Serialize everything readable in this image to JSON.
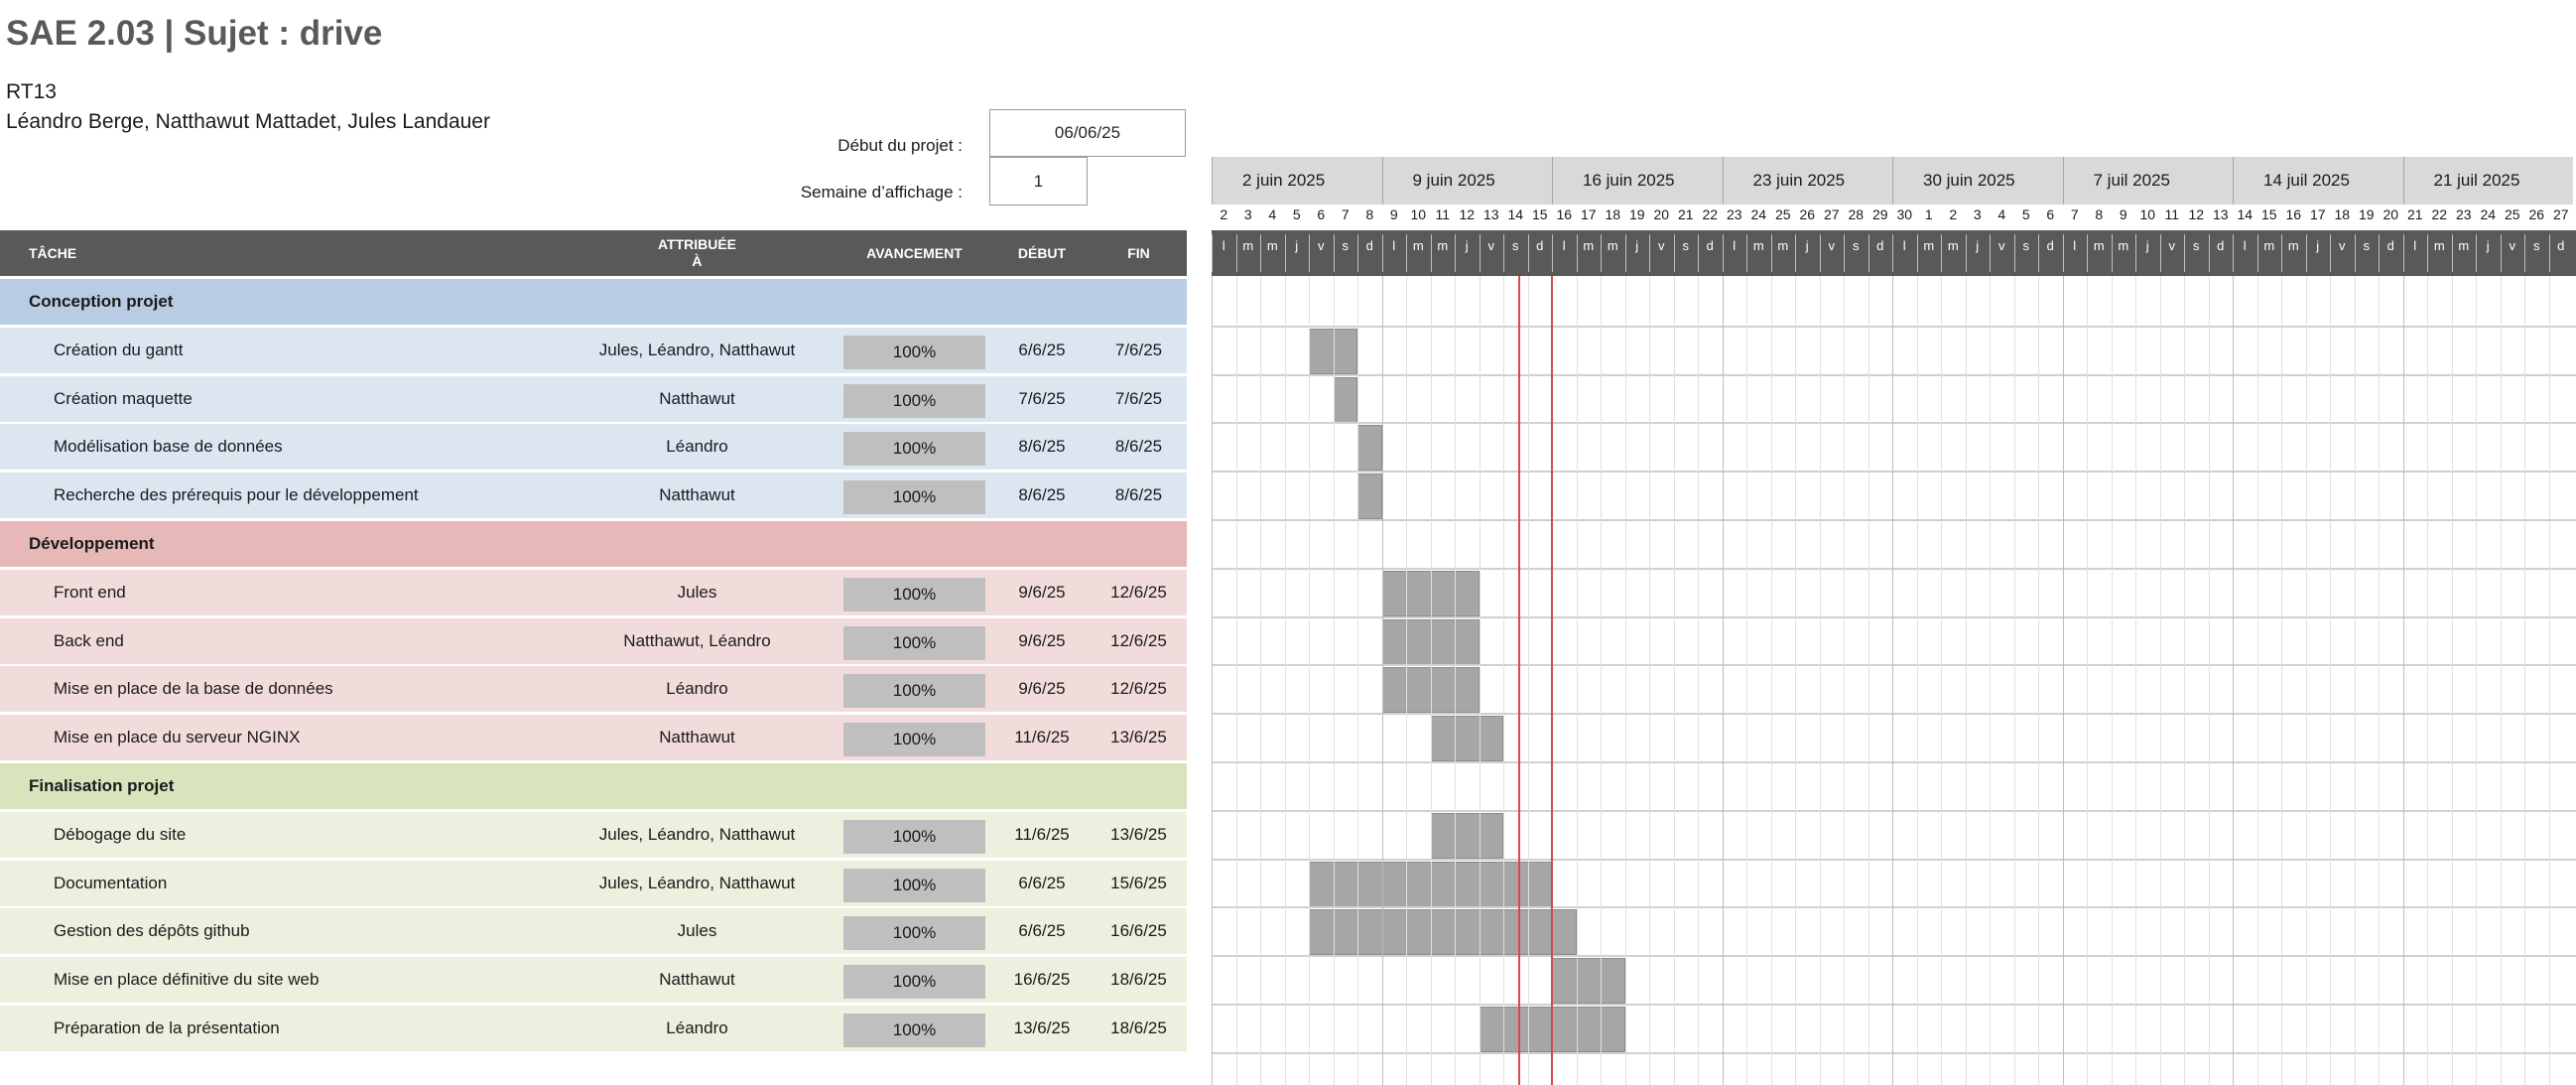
{
  "header": {
    "title": "SAE 2.03 | Sujet : drive",
    "group": "RT13",
    "authors": "Léandro Berge, Natthawut Mattadet, Jules Landauer",
    "project_start_label": "Début du projet :",
    "project_start_value": "06/06/25",
    "display_week_label": "Semaine d’affichage :",
    "display_week_value": "1"
  },
  "columns": {
    "task": "TÂCHE",
    "assigned": "ATTRIBUÉE\nÀ",
    "progress": "AVANCEMENT",
    "start": "DÉBUT",
    "end": "FIN"
  },
  "colors": {
    "header_bg": "#595959",
    "section1": "#b8cce4",
    "section1_row": "#dce6f1",
    "section2": "#e6b8b7",
    "section2_row": "#f2dcdb",
    "section3": "#d8e4bc",
    "section3_row": "#ebf1de",
    "bar": "#a6a6a6",
    "today_line": "#d84a4a"
  },
  "timeline": {
    "weeks": [
      "2 juin 2025",
      "9 juin 2025",
      "16 juin 2025",
      "23 juin 2025",
      "30 juin 2025",
      "7 juil 2025",
      "14 juil 2025",
      "21 juil 2025"
    ],
    "day_numbers": [
      "2",
      "3",
      "4",
      "5",
      "6",
      "7",
      "8",
      "9",
      "10",
      "11",
      "12",
      "13",
      "14",
      "15",
      "16",
      "17",
      "18",
      "19",
      "20",
      "21",
      "22",
      "23",
      "24",
      "25",
      "26",
      "27",
      "28",
      "29",
      "30",
      "1",
      "2",
      "3",
      "4",
      "5",
      "6",
      "7",
      "8",
      "9",
      "10",
      "11",
      "12",
      "13",
      "14",
      "15",
      "16",
      "17",
      "18",
      "19",
      "20",
      "21",
      "22",
      "23",
      "24",
      "25",
      "26",
      "27"
    ],
    "day_letters": [
      "l",
      "m",
      "m",
      "j",
      "v",
      "s",
      "d"
    ]
  },
  "rows": [
    {
      "type": "section",
      "section": 1,
      "task": "Conception projet"
    },
    {
      "type": "task",
      "section": 1,
      "task": "Création du gantt",
      "who": "Jules, Léandro, Natthawut",
      "progress": "100%",
      "start": "6/6/25",
      "end": "7/6/25",
      "s": 4,
      "e": 5
    },
    {
      "type": "task",
      "section": 1,
      "task": "Création maquette",
      "who": "Natthawut",
      "progress": "100%",
      "start": "7/6/25",
      "end": "7/6/25",
      "s": 5,
      "e": 5
    },
    {
      "type": "task",
      "section": 1,
      "task": "Modélisation base de données",
      "who": "Léandro",
      "progress": "100%",
      "start": "8/6/25",
      "end": "8/6/25",
      "s": 6,
      "e": 6
    },
    {
      "type": "task",
      "section": 1,
      "task": "Recherche des prérequis pour le développement",
      "who": "Natthawut",
      "progress": "100%",
      "start": "8/6/25",
      "end": "8/6/25",
      "s": 6,
      "e": 6
    },
    {
      "type": "section",
      "section": 2,
      "task": "Développement"
    },
    {
      "type": "task",
      "section": 2,
      "task": "Front end",
      "who": "Jules",
      "progress": "100%",
      "start": "9/6/25",
      "end": "12/6/25",
      "s": 7,
      "e": 10
    },
    {
      "type": "task",
      "section": 2,
      "task": "Back end",
      "who": "Natthawut, Léandro",
      "progress": "100%",
      "start": "9/6/25",
      "end": "12/6/25",
      "s": 7,
      "e": 10
    },
    {
      "type": "task",
      "section": 2,
      "task": "Mise en place de la base de données",
      "who": "Léandro",
      "progress": "100%",
      "start": "9/6/25",
      "end": "12/6/25",
      "s": 7,
      "e": 10
    },
    {
      "type": "task",
      "section": 2,
      "task": "Mise en place du serveur NGINX",
      "who": "Natthawut",
      "progress": "100%",
      "start": "11/6/25",
      "end": "13/6/25",
      "s": 9,
      "e": 11
    },
    {
      "type": "section",
      "section": 3,
      "task": "Finalisation projet"
    },
    {
      "type": "task",
      "section": 3,
      "task": "Débogage du site",
      "who": "Jules, Léandro, Natthawut",
      "progress": "100%",
      "start": "11/6/25",
      "end": "13/6/25",
      "s": 9,
      "e": 11
    },
    {
      "type": "task",
      "section": 3,
      "task": "Documentation",
      "who": "Jules, Léandro, Natthawut",
      "progress": "100%",
      "start": "6/6/25",
      "end": "15/6/25",
      "s": 4,
      "e": 13
    },
    {
      "type": "task",
      "section": 3,
      "task": "Gestion des dépôts github",
      "who": "Jules",
      "progress": "100%",
      "start": "6/6/25",
      "end": "16/6/25",
      "s": 4,
      "e": 14
    },
    {
      "type": "task",
      "section": 3,
      "task": "Mise en place définitive du site web",
      "who": "Natthawut",
      "progress": "100%",
      "start": "16/6/25",
      "end": "18/6/25",
      "s": 14,
      "e": 16
    },
    {
      "type": "task",
      "section": 3,
      "task": "Préparation de la présentation",
      "who": "Léandro",
      "progress": "100%",
      "start": "13/6/25",
      "end": "18/6/25",
      "s": 11,
      "e": 16
    }
  ],
  "today_index": 12.6
}
